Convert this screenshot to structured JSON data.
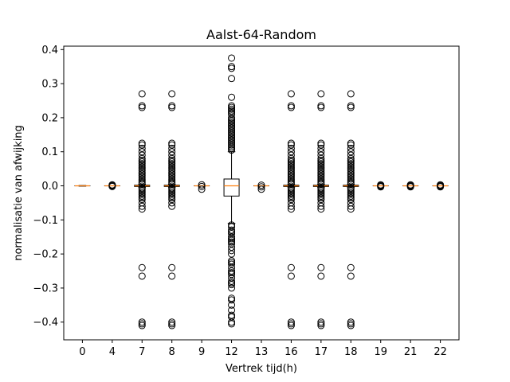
{
  "chart_data": {
    "type": "box",
    "title": "Aalst-64-Random",
    "xlabel": "Vertrek tijd(h)",
    "ylabel": "normalisatie van afwijking",
    "ylim": [
      -0.452,
      0.41
    ],
    "yticks": [
      0.4,
      0.3,
      0.2,
      0.1,
      0.0,
      -0.1,
      -0.2,
      -0.3,
      -0.4
    ],
    "ytick_labels": [
      "0.4",
      "0.3",
      "0.2",
      "0.1",
      "0.0",
      "−0.1",
      "−0.2",
      "−0.3",
      "−0.4"
    ],
    "categories": [
      "0",
      "4",
      "7",
      "8",
      "9",
      "12",
      "13",
      "16",
      "17",
      "18",
      "19",
      "21",
      "22"
    ],
    "grid": false,
    "colors": {
      "box": "#000000",
      "median": "#ff7f0e",
      "flier": "#000000"
    },
    "boxes": [
      {
        "cat": "0",
        "q1": 0.0,
        "median": 0.0,
        "q3": 0.0,
        "whislo": -0.001,
        "whishi": 0.001,
        "fliers": []
      },
      {
        "cat": "4",
        "q1": 0.0,
        "median": 0.0,
        "q3": 0.0,
        "whislo": 0.0,
        "whishi": 0.0,
        "fliers": [
          -0.002,
          0.0,
          0.002,
          0.003
        ]
      },
      {
        "cat": "7",
        "q1": -0.002,
        "median": 0.0,
        "q3": 0.002,
        "whislo": -0.004,
        "whishi": 0.004,
        "fliers": [
          0.27,
          0.235,
          0.23,
          0.125,
          0.12,
          0.11,
          0.1,
          0.09,
          0.08,
          0.075,
          0.07,
          0.065,
          0.06,
          0.055,
          0.05,
          0.045,
          0.04,
          0.035,
          0.03,
          0.025,
          0.02,
          0.015,
          0.01,
          0.006,
          -0.006,
          -0.01,
          -0.015,
          -0.02,
          -0.025,
          -0.03,
          -0.035,
          -0.04,
          -0.05,
          -0.06,
          -0.068,
          -0.24,
          -0.265,
          -0.4,
          -0.405,
          -0.41
        ]
      },
      {
        "cat": "8",
        "q1": -0.002,
        "median": 0.0,
        "q3": 0.002,
        "whislo": -0.004,
        "whishi": 0.004,
        "fliers": [
          0.27,
          0.235,
          0.23,
          0.125,
          0.12,
          0.11,
          0.1,
          0.09,
          0.08,
          0.075,
          0.07,
          0.065,
          0.06,
          0.055,
          0.05,
          0.045,
          0.04,
          0.035,
          0.03,
          0.025,
          0.02,
          0.015,
          0.01,
          0.006,
          -0.006,
          -0.01,
          -0.015,
          -0.02,
          -0.025,
          -0.03,
          -0.035,
          -0.04,
          -0.05,
          -0.06,
          -0.24,
          -0.265,
          -0.4,
          -0.405,
          -0.41
        ]
      },
      {
        "cat": "9",
        "q1": 0.0,
        "median": 0.0,
        "q3": 0.0,
        "whislo": 0.0,
        "whishi": 0.0,
        "fliers": [
          0.003,
          -0.002,
          -0.01
        ]
      },
      {
        "cat": "12",
        "q1": -0.03,
        "median": 0.0,
        "q3": 0.02,
        "whislo": -0.11,
        "whishi": 0.1,
        "fliers": [
          0.375,
          0.35,
          0.345,
          0.315,
          0.26,
          0.235,
          0.23,
          0.225,
          0.22,
          0.215,
          0.21,
          0.2,
          0.195,
          0.19,
          0.185,
          0.18,
          0.175,
          0.17,
          0.165,
          0.16,
          0.155,
          0.15,
          0.145,
          0.14,
          0.135,
          0.13,
          0.125,
          0.12,
          0.115,
          0.11,
          0.105,
          -0.115,
          -0.12,
          -0.13,
          -0.135,
          -0.14,
          -0.15,
          -0.155,
          -0.16,
          -0.165,
          -0.17,
          -0.18,
          -0.19,
          -0.2,
          -0.22,
          -0.225,
          -0.23,
          -0.24,
          -0.25,
          -0.255,
          -0.26,
          -0.27,
          -0.28,
          -0.285,
          -0.29,
          -0.3,
          -0.33,
          -0.335,
          -0.35,
          -0.365,
          -0.38,
          -0.385,
          -0.4,
          -0.405
        ]
      },
      {
        "cat": "13",
        "q1": 0.0,
        "median": 0.0,
        "q3": 0.0,
        "whislo": 0.0,
        "whishi": 0.0,
        "fliers": [
          0.002,
          -0.003,
          -0.01
        ]
      },
      {
        "cat": "16",
        "q1": -0.002,
        "median": 0.0,
        "q3": 0.002,
        "whislo": -0.004,
        "whishi": 0.004,
        "fliers": [
          0.27,
          0.235,
          0.23,
          0.125,
          0.12,
          0.11,
          0.1,
          0.09,
          0.08,
          0.075,
          0.07,
          0.065,
          0.06,
          0.055,
          0.05,
          0.045,
          0.04,
          0.035,
          0.03,
          0.025,
          0.02,
          0.015,
          0.01,
          0.006,
          -0.006,
          -0.01,
          -0.015,
          -0.02,
          -0.025,
          -0.03,
          -0.035,
          -0.04,
          -0.05,
          -0.06,
          -0.068,
          -0.24,
          -0.265,
          -0.4,
          -0.405,
          -0.41
        ]
      },
      {
        "cat": "17",
        "q1": -0.002,
        "median": 0.0,
        "q3": 0.002,
        "whislo": -0.004,
        "whishi": 0.004,
        "fliers": [
          0.27,
          0.235,
          0.23,
          0.125,
          0.12,
          0.11,
          0.1,
          0.09,
          0.08,
          0.075,
          0.07,
          0.065,
          0.06,
          0.055,
          0.05,
          0.045,
          0.04,
          0.035,
          0.03,
          0.025,
          0.02,
          0.015,
          0.01,
          0.006,
          -0.006,
          -0.01,
          -0.015,
          -0.02,
          -0.025,
          -0.03,
          -0.035,
          -0.04,
          -0.05,
          -0.06,
          -0.068,
          -0.24,
          -0.265,
          -0.4,
          -0.405,
          -0.41
        ]
      },
      {
        "cat": "18",
        "q1": -0.002,
        "median": 0.0,
        "q3": 0.002,
        "whislo": -0.004,
        "whishi": 0.004,
        "fliers": [
          0.27,
          0.235,
          0.23,
          0.125,
          0.12,
          0.11,
          0.1,
          0.09,
          0.08,
          0.075,
          0.07,
          0.065,
          0.06,
          0.055,
          0.05,
          0.045,
          0.04,
          0.035,
          0.03,
          0.025,
          0.02,
          0.015,
          0.01,
          0.006,
          -0.006,
          -0.01,
          -0.015,
          -0.02,
          -0.025,
          -0.03,
          -0.035,
          -0.04,
          -0.05,
          -0.06,
          -0.068,
          -0.24,
          -0.265,
          -0.4,
          -0.405,
          -0.41
        ]
      },
      {
        "cat": "19",
        "q1": 0.0,
        "median": 0.0,
        "q3": 0.0,
        "whislo": 0.0,
        "whishi": 0.0,
        "fliers": [
          -0.003,
          -0.001,
          0.001,
          0.003
        ]
      },
      {
        "cat": "21",
        "q1": 0.0,
        "median": 0.0,
        "q3": 0.0,
        "whislo": 0.0,
        "whishi": 0.0,
        "fliers": [
          -0.003,
          -0.001,
          0.001,
          0.003
        ]
      },
      {
        "cat": "22",
        "q1": 0.0,
        "median": 0.0,
        "q3": 0.0,
        "whislo": 0.0,
        "whishi": 0.0,
        "fliers": [
          -0.003,
          -0.001,
          0.001,
          0.003
        ]
      }
    ]
  }
}
